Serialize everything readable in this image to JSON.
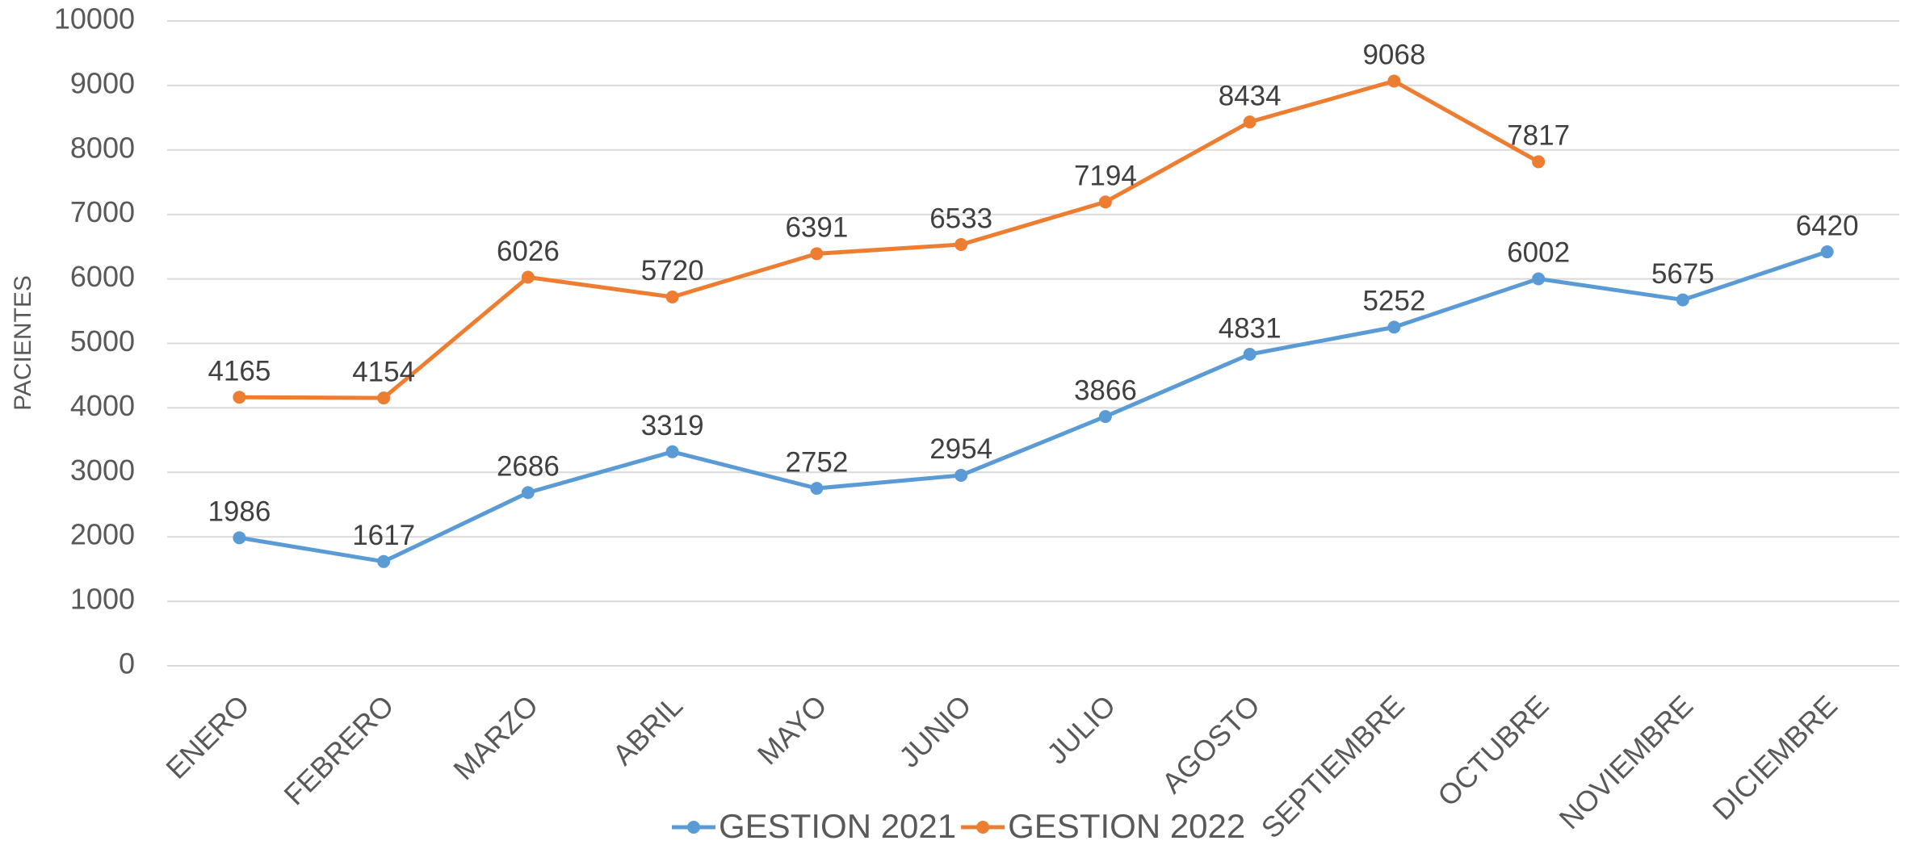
{
  "chart_data": {
    "type": "line",
    "y_label": "PACIENTES",
    "categories": [
      "ENERO",
      "FEBRERO",
      "MARZO",
      "ABRIL",
      "MAYO",
      "JUNIO",
      "JULIO",
      "AGOSTO",
      "SEPTIEMBRE",
      "OCTUBRE",
      "NOVIEMBRE",
      "DICIEMBRE"
    ],
    "series": [
      {
        "name": "GESTION 2021",
        "color": "#5b9bd5",
        "values": [
          1986,
          1617,
          2686,
          3319,
          2752,
          2954,
          3866,
          4831,
          5252,
          6002,
          5675,
          6420
        ]
      },
      {
        "name": "GESTION 2022",
        "color": "#ed7d31",
        "values": [
          4165,
          4154,
          6026,
          5720,
          6391,
          6533,
          7194,
          8434,
          9068,
          7817,
          null,
          null
        ]
      }
    ],
    "ylim": [
      0,
      10000
    ],
    "yticks": [
      0,
      1000,
      2000,
      3000,
      4000,
      5000,
      6000,
      7000,
      8000,
      9000,
      10000
    ],
    "grid": true,
    "legend": "bottom"
  }
}
